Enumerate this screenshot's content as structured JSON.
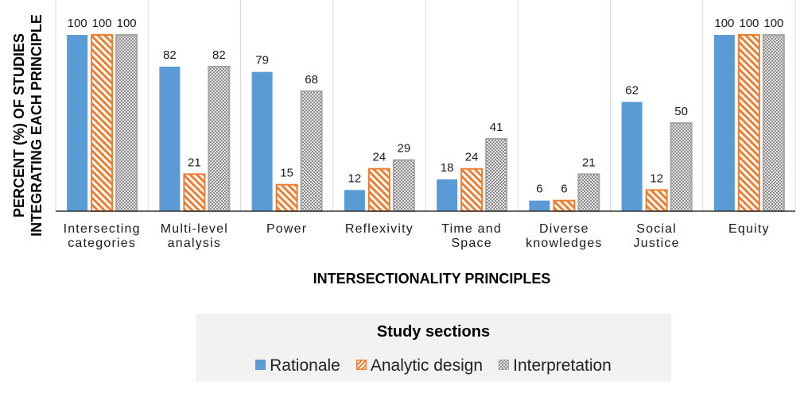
{
  "chart_data": {
    "type": "bar",
    "title": "",
    "xlabel": "INTERSECTIONALITY PRINCIPLES",
    "ylabel_lines": [
      "PERCENT (%) OF STUDIES",
      "INTEGRATING EACH PRINCIPLE"
    ],
    "ylim": [
      0,
      100
    ],
    "grid": "vertical separators between categories",
    "categories": [
      [
        "Intersecting",
        "categories"
      ],
      [
        "Multi-level",
        "analysis"
      ],
      [
        "Power"
      ],
      [
        "Reflexivity"
      ],
      [
        "Time and",
        "Space"
      ],
      [
        "Diverse",
        "knowledges"
      ],
      [
        "Social",
        "Justice"
      ],
      [
        "Equity"
      ]
    ],
    "series": [
      {
        "name": "Rationale",
        "style": "solid",
        "color": "#5b9bd5",
        "values": [
          100,
          82,
          79,
          12,
          18,
          6,
          62,
          100
        ]
      },
      {
        "name": "Analytic design",
        "style": "hatch",
        "color": "#ed7d31",
        "values": [
          100,
          21,
          15,
          24,
          24,
          6,
          12,
          100
        ]
      },
      {
        "name": "Interpretation",
        "style": "dots",
        "color": "#a5a5a5",
        "values": [
          100,
          82,
          68,
          29,
          41,
          21,
          50,
          100
        ]
      }
    ],
    "legend": {
      "title": "Study sections",
      "position": "bottom"
    }
  }
}
